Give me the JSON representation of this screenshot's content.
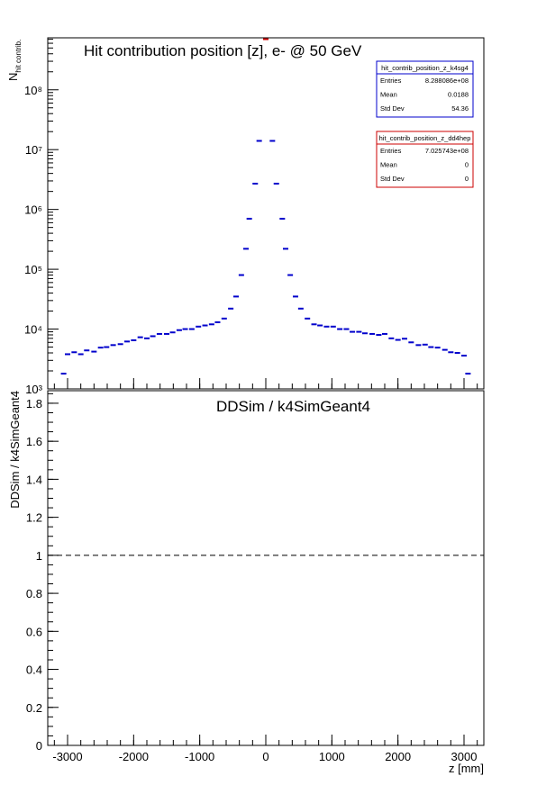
{
  "chart_data": [
    {
      "type": "scatter",
      "title": "Hit contribution position [z],  e- @ 50 GeV",
      "ylabel": "N",
      "ylabel_sub": "hit contrib.",
      "log_y": true,
      "xlim": [
        -3300,
        3300
      ],
      "ylim": [
        1000,
        740000000
      ],
      "xticks": [
        -3000,
        -2000,
        -1000,
        0,
        1000,
        2000,
        3000
      ],
      "yticks": [
        {
          "value": 1000,
          "label": "10³"
        },
        {
          "value": 10000,
          "label": "10⁴"
        },
        {
          "value": 100000,
          "label": "10⁵"
        },
        {
          "value": 1000000,
          "label": "10⁶"
        },
        {
          "value": 10000000,
          "label": "10⁷"
        },
        {
          "value": 100000000,
          "label": "10⁸"
        }
      ],
      "series": [
        {
          "name": "hit_contrib_position_z_k4sg4",
          "color": "#0000cc",
          "x": [
            -3060,
            -3000,
            -2900,
            -2800,
            -2710,
            -2600,
            -2500,
            -2410,
            -2310,
            -2200,
            -2100,
            -2000,
            -1900,
            -1800,
            -1710,
            -1610,
            -1500,
            -1410,
            -1310,
            -1220,
            -1120,
            -1020,
            -920,
            -820,
            -730,
            -630,
            -530,
            -450,
            -370,
            -300,
            -250,
            -160,
            -100,
            0,
            100,
            160,
            250,
            300,
            370,
            450,
            530,
            630,
            730,
            820,
            920,
            1020,
            1120,
            1220,
            1310,
            1410,
            1500,
            1610,
            1710,
            1800,
            1900,
            2000,
            2100,
            2200,
            2310,
            2410,
            2500,
            2600,
            2710,
            2800,
            2900,
            3000,
            3060
          ],
          "values": [
            1800,
            3800,
            4100,
            3800,
            4400,
            4200,
            4900,
            5000,
            5400,
            5600,
            6200,
            6500,
            7300,
            7000,
            7600,
            8300,
            8300,
            8800,
            9600,
            10000,
            10000,
            11000,
            11500,
            12000,
            13000,
            15000,
            22000,
            35000,
            80000,
            220000,
            700000,
            2700000,
            14000000,
            790000000,
            14000000,
            2700000,
            700000,
            220000,
            80000,
            35000,
            22000,
            15000,
            12000,
            11500,
            11000,
            11000,
            10000,
            10000,
            9000,
            9000,
            8500,
            8300,
            8000,
            8300,
            7000,
            6600,
            6900,
            6000,
            5400,
            5500,
            5000,
            4900,
            4500,
            4100,
            4000,
            3600,
            1800
          ]
        },
        {
          "name": "hit_contrib_position_z_dd4hep",
          "color": "#cc0000",
          "x": [
            0
          ],
          "values": [
            702574300
          ]
        }
      ],
      "stats": [
        {
          "title": "hit_contrib_position_z_k4sg4",
          "color": "#0000cc",
          "rows": [
            [
              "Entries",
              "8.288086e+08"
            ],
            [
              "Mean",
              "0.0188"
            ],
            [
              "Std Dev",
              "54.36"
            ]
          ]
        },
        {
          "title": "hit_contrib_position_z_dd4hep",
          "color": "#cc0000",
          "rows": [
            [
              "Entries",
              "7.025743e+08"
            ],
            [
              "Mean",
              "0"
            ],
            [
              "Std Dev",
              "0"
            ]
          ]
        }
      ]
    },
    {
      "type": "line",
      "title": "DDSim / k4SimGeant4",
      "ylabel": "DDSim / k4SimGeant4",
      "xlabel": "z [mm]",
      "xlim": [
        -3300,
        3300
      ],
      "ylim": [
        0,
        1.866
      ],
      "xticks": [
        -3000,
        -2000,
        -1000,
        0,
        1000,
        2000,
        3000
      ],
      "yticks": [
        0,
        0.2,
        0.4,
        0.6,
        0.8,
        1,
        1.2,
        1.4,
        1.6,
        1.8
      ],
      "reference_line": 1
    }
  ]
}
